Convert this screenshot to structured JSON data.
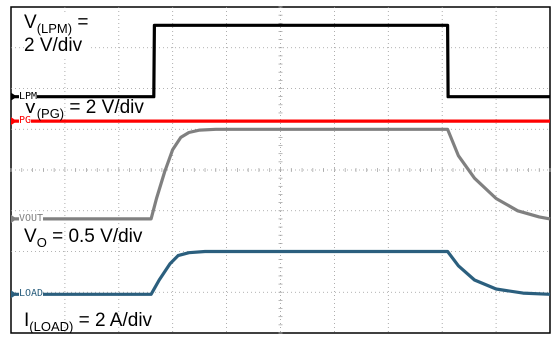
{
  "chart_data": {
    "type": "line",
    "title": "",
    "grid": true,
    "divisions": {
      "x": 10,
      "y": 8
    },
    "series": [
      {
        "name": "LPM",
        "color": "#000000",
        "scale_text": {
          "pre": "V",
          "sub": "(LPM)",
          "post": " =",
          "line2": "2 V/div"
        },
        "x": [
          0,
          2.65,
          2.66,
          8.1,
          8.11,
          10
        ],
        "y": [
          5.8,
          5.8,
          7.55,
          7.55,
          5.8,
          5.8
        ]
      },
      {
        "name": "PG",
        "color": "#ff0000",
        "scale_text": {
          "pre": "V",
          "sub": "(PG)",
          "post": " = 2 V/div"
        },
        "x": [
          0,
          10
        ],
        "y": [
          5.2,
          5.2
        ]
      },
      {
        "name": "VOUT",
        "color": "#808080",
        "scale_text": {
          "pre": "V",
          "sub": "O",
          "post": " = 0.5 V/div"
        },
        "x": [
          0,
          2.6,
          2.7,
          2.85,
          3.0,
          3.15,
          3.3,
          3.5,
          3.8,
          4.2,
          8.1,
          8.3,
          8.6,
          9.0,
          9.4,
          9.8,
          10
        ],
        "y": [
          2.8,
          2.8,
          3.3,
          3.95,
          4.5,
          4.8,
          4.92,
          4.98,
          5.0,
          5.0,
          5.0,
          4.35,
          3.8,
          3.3,
          3.0,
          2.85,
          2.8
        ]
      },
      {
        "name": "LOAD",
        "color": "#2b5f7e",
        "scale_text": {
          "pre": "I",
          "sub": "(LOAD)",
          "post": " = 2 A/div"
        },
        "x": [
          0,
          2.6,
          2.75,
          2.95,
          3.1,
          3.3,
          3.6,
          4.0,
          8.1,
          8.3,
          8.6,
          9.0,
          9.5,
          10
        ],
        "y": [
          0.95,
          0.95,
          1.3,
          1.7,
          1.9,
          1.97,
          2.0,
          2.0,
          2.0,
          1.65,
          1.3,
          1.08,
          0.98,
          0.95
        ]
      }
    ]
  }
}
